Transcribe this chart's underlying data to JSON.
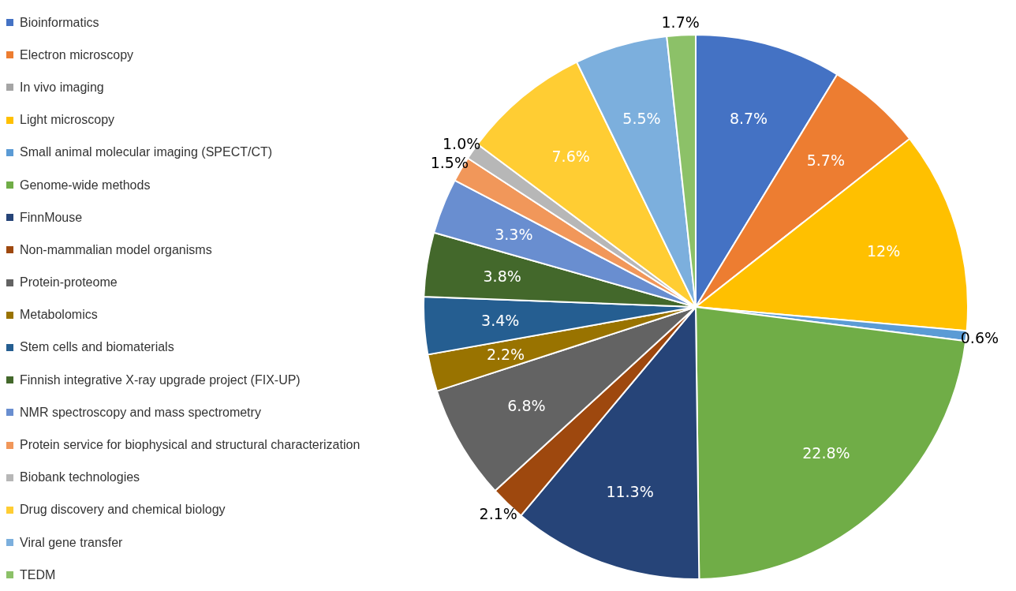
{
  "chart_data": {
    "type": "pie",
    "legend": "left",
    "categories": [
      "Bioinformatics",
      "Electron microscopy",
      "In vivo imaging",
      "Light microscopy",
      "Small animal molecular imaging (SPECT/CT)",
      "Genome-wide methods",
      "FinnMouse",
      "Non-mammalian model organisms",
      "Protein-proteome",
      "Metabolomics",
      "Stem cells and biomaterials",
      "Finnish integrative X-ray upgrade project (FIX-UP)",
      "NMR spectroscopy and mass spectrometry",
      "Protein service for biophysical and structural characterization",
      "Biobank technologies",
      "Drug discovery and chemical biology",
      "Viral gene transfer",
      "TEDM"
    ],
    "values": [
      8.7,
      5.7,
      0,
      12,
      0.6,
      22.8,
      11.3,
      2.1,
      6.8,
      2.2,
      3.4,
      3.8,
      3.3,
      1.5,
      1.0,
      7.6,
      5.5,
      1.7
    ],
    "value_labels": [
      "8.7%",
      "5.7%",
      null,
      "12%",
      "0.6%",
      "22.8%",
      "11.3%",
      "2.1%",
      "6.8%",
      "2.2%",
      "3.4%",
      "3.8%",
      "3.3%",
      "1.5%",
      "1.0%",
      "7.6%",
      "5.5%",
      "1.7%"
    ],
    "colors": [
      "#4472c4",
      "#ed7d31",
      "#a5a5a5",
      "#ffc000",
      "#5b9bd5",
      "#70ad47",
      "#264478",
      "#9e480e",
      "#636363",
      "#997300",
      "#255e91",
      "#43682b",
      "#698ed0",
      "#f1975a",
      "#b7b7b7",
      "#ffcd33",
      "#7cafdd",
      "#8cc168"
    ]
  }
}
